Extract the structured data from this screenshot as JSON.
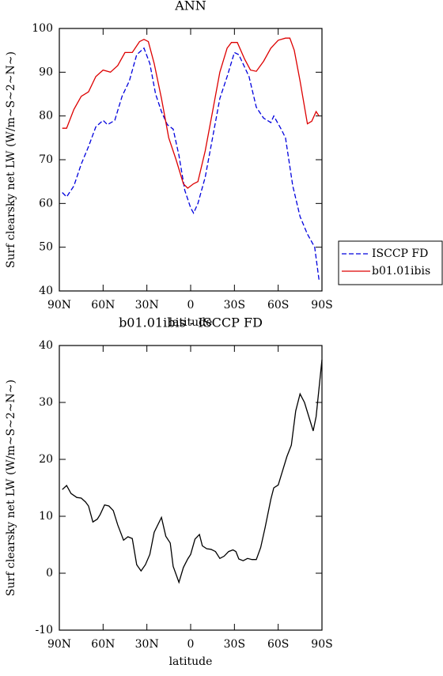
{
  "chart_data": [
    {
      "type": "line",
      "title": "ANN",
      "xlabel": "latitude",
      "ylabel": "Surf clearsky net LW (W/m~S~2~N~)",
      "xlim": [
        90,
        -90
      ],
      "xticks": [
        {
          "value": 90,
          "label": "90N"
        },
        {
          "value": 60,
          "label": "60N"
        },
        {
          "value": 30,
          "label": "30N"
        },
        0,
        {
          "value": -30,
          "label": "30S"
        },
        {
          "value": -60,
          "label": "60S"
        },
        {
          "value": -90,
          "label": "90S"
        }
      ],
      "ylim": [
        40,
        100
      ],
      "yticks": [
        40,
        50,
        60,
        70,
        80,
        90,
        100
      ],
      "legend": "right",
      "series": [
        {
          "name": "ISCCP FD",
          "color": "#0000dd",
          "line_style": "dashed",
          "x": [
            88,
            85,
            80,
            75,
            70,
            65,
            60,
            57,
            52,
            47,
            42,
            37,
            32,
            28,
            24,
            20,
            16,
            12,
            8,
            4,
            0,
            -2,
            -5,
            -10,
            -15,
            -20,
            -25,
            -30,
            -33,
            -40,
            -45,
            -50,
            -55,
            -57,
            -62,
            -65,
            -70,
            -75,
            -80,
            -85,
            -88
          ],
          "values": [
            62.5,
            61.5,
            64,
            69,
            73,
            77.5,
            79,
            78,
            79,
            84.5,
            88,
            94,
            95.5,
            92,
            85,
            81,
            78,
            77,
            71,
            63,
            59,
            57.8,
            60,
            66,
            75,
            84,
            89,
            94.5,
            94,
            89,
            82,
            79.5,
            78.5,
            80,
            77,
            75,
            64,
            57,
            53,
            50,
            42.5
          ]
        },
        {
          "name": "b01.01ibis",
          "color": "#dd0000",
          "line_style": "solid",
          "x": [
            88,
            85,
            80,
            75,
            70,
            65,
            60,
            55,
            50,
            45,
            40,
            35,
            32,
            29,
            25,
            20,
            15,
            10,
            5,
            2,
            -2,
            -5,
            -10,
            -15,
            -20,
            -25,
            -28,
            -32,
            -37,
            -41,
            -45,
            -50,
            -55,
            -60,
            -65,
            -68,
            -71,
            -75,
            -80,
            -83,
            -86,
            -88
          ],
          "values": [
            77.2,
            77.2,
            81.5,
            84.5,
            85.5,
            89,
            90.5,
            90,
            91.5,
            94.5,
            94.5,
            97,
            97.5,
            97,
            92,
            84,
            75,
            70,
            64.5,
            63.5,
            64.5,
            65,
            72,
            81,
            90,
            95.5,
            96.8,
            96.8,
            93,
            90.5,
            90.2,
            92.5,
            95.5,
            97.3,
            97.8,
            97.8,
            95,
            88,
            78.2,
            78.8,
            81,
            80
          ]
        }
      ]
    },
    {
      "type": "line",
      "title": "b01.01ibis - ISCCP FD",
      "xlabel": "latitude",
      "ylabel": "Surf clearsky net LW (W/m~S~2~N~)",
      "xlim": [
        90,
        -90
      ],
      "xticks": [
        {
          "value": 90,
          "label": "90N"
        },
        {
          "value": 60,
          "label": "60N"
        },
        {
          "value": 30,
          "label": "30N"
        },
        0,
        {
          "value": -30,
          "label": "30S"
        },
        {
          "value": -60,
          "label": "60S"
        },
        {
          "value": -90,
          "label": "90S"
        }
      ],
      "ylim": [
        -10,
        40
      ],
      "yticks": [
        -10,
        0,
        10,
        20,
        30,
        40
      ],
      "series": [
        {
          "color": "#000000",
          "line_style": "solid",
          "x": [
            88,
            85,
            82,
            78,
            75,
            72,
            70,
            67,
            64,
            62,
            59,
            56,
            53,
            50,
            46,
            43,
            40,
            37,
            34,
            31,
            28,
            25,
            20,
            17,
            14,
            12,
            8,
            5,
            2,
            0,
            -3,
            -6,
            -8,
            -11,
            -14,
            -17,
            -20,
            -23,
            -26,
            -29,
            -31,
            -33,
            -36,
            -39,
            -42,
            -45,
            -48,
            -51,
            -55,
            -57,
            -60,
            -63,
            -66,
            -69,
            -72,
            -75,
            -78,
            -81,
            -84,
            -86,
            -90
          ],
          "values": [
            14.7,
            15.4,
            14,
            13.3,
            13.2,
            12.5,
            11.8,
            9,
            9.5,
            10.3,
            12,
            11.8,
            11,
            8.5,
            5.8,
            6.4,
            6.1,
            1.5,
            0.4,
            1.5,
            3.3,
            7.2,
            9.8,
            6.5,
            5.3,
            1.2,
            -1.6,
            1,
            2.5,
            3.3,
            6,
            6.8,
            4.8,
            4.3,
            4.2,
            3.8,
            2.6,
            3,
            3.8,
            4.1,
            3.8,
            2.5,
            2.2,
            2.6,
            2.4,
            2.4,
            4.5,
            8,
            13,
            15,
            15.5,
            18,
            20.5,
            22.5,
            28.5,
            31.5,
            30,
            27.5,
            25,
            27.5,
            37.5
          ]
        }
      ]
    }
  ]
}
